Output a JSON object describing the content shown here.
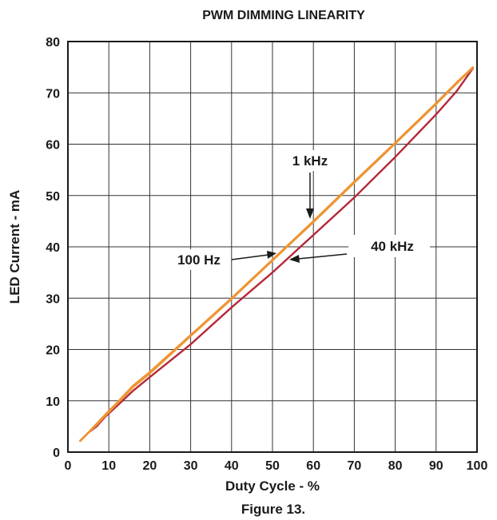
{
  "chart_data": {
    "type": "line",
    "title": "PWM DIMMING LINEARITY",
    "xlabel": "Duty Cycle - %",
    "ylabel": "LED Current - mA",
    "xlim": [
      0,
      100
    ],
    "ylim": [
      0,
      80
    ],
    "x_ticks": [
      "0",
      "10",
      "20",
      "30",
      "40",
      "50",
      "60",
      "70",
      "80",
      "90",
      "100"
    ],
    "y_ticks": [
      "0",
      "10",
      "20",
      "30",
      "40",
      "50",
      "60",
      "70",
      "80"
    ],
    "grid": true,
    "series": [
      {
        "name": "1 kHz",
        "color": "#f0922e",
        "x": [
          3,
          5,
          7,
          9,
          12,
          16,
          20,
          30,
          40,
          50,
          60,
          70,
          80,
          90,
          95,
          99
        ],
        "y": [
          2.2,
          3.8,
          5.5,
          7.2,
          9.6,
          13.0,
          15.6,
          22.8,
          30.0,
          37.5,
          45.0,
          52.7,
          60.3,
          68.0,
          72.0,
          75.0
        ]
      },
      {
        "name": "100 Hz",
        "color": "#e8a040",
        "x": [
          3,
          5,
          7,
          9,
          12,
          16,
          20,
          30,
          40,
          50,
          60,
          70,
          80,
          90,
          95,
          99
        ],
        "y": [
          2.2,
          3.8,
          5.3,
          7.0,
          9.4,
          12.7,
          15.3,
          22.6,
          29.8,
          37.3,
          44.8,
          52.5,
          60.1,
          67.8,
          71.8,
          74.9
        ]
      },
      {
        "name": "40 kHz",
        "color": "#b5283a",
        "x": [
          3,
          5,
          7,
          9,
          12,
          16,
          20,
          30,
          40,
          50,
          60,
          70,
          80,
          90,
          95,
          99
        ],
        "y": [
          2.2,
          3.8,
          5.0,
          6.8,
          9.0,
          12.0,
          14.6,
          21.0,
          28.2,
          35.0,
          42.3,
          49.6,
          57.5,
          65.8,
          70.3,
          74.8
        ]
      }
    ],
    "annotations": [
      "1 kHz",
      "100 Hz",
      "40 kHz"
    ],
    "caption": "Figure 13."
  }
}
